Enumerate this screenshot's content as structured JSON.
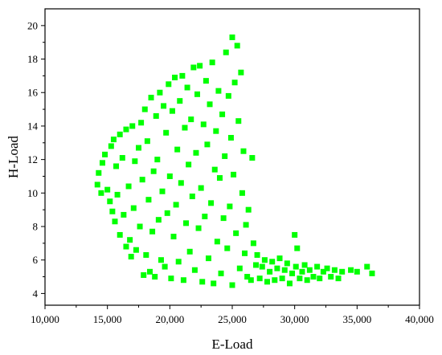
{
  "chart_data": {
    "type": "scatter",
    "title": "",
    "xlabel": "E-Load",
    "ylabel": "H-Load",
    "xlim": [
      10000,
      40000
    ],
    "ylim": [
      3.3,
      21
    ],
    "x_ticks": [
      10000,
      15000,
      20000,
      25000,
      30000,
      35000,
      40000
    ],
    "x_tick_labels": [
      "10,000",
      "15,000",
      "20,000",
      "25,000",
      "30,000",
      "35,000",
      "40,000"
    ],
    "y_ticks": [
      4,
      6,
      8,
      10,
      12,
      14,
      16,
      18,
      20
    ],
    "y_tick_labels": [
      "4",
      "6",
      "8",
      "10",
      "12",
      "14",
      "16",
      "18",
      "20"
    ],
    "grid": false,
    "legend": "none",
    "marker": "square",
    "series": [
      {
        "color": "#00ff00",
        "points": [
          [
            14200,
            10.5
          ],
          [
            14300,
            11.2
          ],
          [
            14500,
            10.0
          ],
          [
            14600,
            11.8
          ],
          [
            14800,
            12.3
          ],
          [
            15000,
            10.2
          ],
          [
            15200,
            9.5
          ],
          [
            15300,
            12.8
          ],
          [
            15400,
            8.9
          ],
          [
            15500,
            13.2
          ],
          [
            15600,
            8.3
          ],
          [
            15700,
            11.6
          ],
          [
            15800,
            9.9
          ],
          [
            16000,
            13.5
          ],
          [
            16000,
            7.5
          ],
          [
            16200,
            12.1
          ],
          [
            16300,
            8.7
          ],
          [
            16500,
            6.8
          ],
          [
            16500,
            13.8
          ],
          [
            16700,
            10.4
          ],
          [
            16800,
            7.2
          ],
          [
            16900,
            6.2
          ],
          [
            17000,
            14.0
          ],
          [
            17100,
            9.1
          ],
          [
            17200,
            11.9
          ],
          [
            17300,
            6.6
          ],
          [
            17500,
            12.7
          ],
          [
            17600,
            8.0
          ],
          [
            17700,
            14.2
          ],
          [
            17800,
            10.8
          ],
          [
            17900,
            5.1
          ],
          [
            18000,
            15.0
          ],
          [
            18100,
            6.3
          ],
          [
            18200,
            13.1
          ],
          [
            18300,
            9.6
          ],
          [
            18400,
            5.3
          ],
          [
            18500,
            15.7
          ],
          [
            18600,
            7.7
          ],
          [
            18700,
            11.3
          ],
          [
            18800,
            5.0
          ],
          [
            18900,
            14.6
          ],
          [
            19000,
            12.0
          ],
          [
            19100,
            8.4
          ],
          [
            19200,
            16.0
          ],
          [
            19300,
            6.0
          ],
          [
            19400,
            10.1
          ],
          [
            19500,
            15.2
          ],
          [
            19600,
            5.6
          ],
          [
            19700,
            13.6
          ],
          [
            19800,
            8.8
          ],
          [
            19900,
            16.5
          ],
          [
            20000,
            11.0
          ],
          [
            20100,
            4.9
          ],
          [
            20200,
            14.9
          ],
          [
            20300,
            7.4
          ],
          [
            20400,
            16.9
          ],
          [
            20500,
            9.3
          ],
          [
            20600,
            12.6
          ],
          [
            20700,
            5.9
          ],
          [
            20800,
            15.5
          ],
          [
            20900,
            10.6
          ],
          [
            21000,
            17.0
          ],
          [
            21100,
            4.8
          ],
          [
            21200,
            13.9
          ],
          [
            21300,
            8.2
          ],
          [
            21400,
            16.3
          ],
          [
            21500,
            11.7
          ],
          [
            21600,
            6.5
          ],
          [
            21700,
            14.4
          ],
          [
            21800,
            9.8
          ],
          [
            21900,
            17.5
          ],
          [
            22000,
            5.4
          ],
          [
            22100,
            12.4
          ],
          [
            22200,
            15.9
          ],
          [
            22300,
            7.9
          ],
          [
            22400,
            17.6
          ],
          [
            22500,
            10.3
          ],
          [
            22600,
            4.7
          ],
          [
            22700,
            14.1
          ],
          [
            22800,
            8.6
          ],
          [
            22900,
            16.7
          ],
          [
            23000,
            12.9
          ],
          [
            23100,
            6.1
          ],
          [
            23200,
            15.3
          ],
          [
            23300,
            9.4
          ],
          [
            23400,
            17.8
          ],
          [
            23500,
            4.6
          ],
          [
            23600,
            11.4
          ],
          [
            23700,
            13.7
          ],
          [
            23800,
            7.1
          ],
          [
            23900,
            16.1
          ],
          [
            24000,
            10.9
          ],
          [
            24100,
            5.2
          ],
          [
            24200,
            14.7
          ],
          [
            24300,
            8.5
          ],
          [
            24400,
            12.2
          ],
          [
            24500,
            18.4
          ],
          [
            24600,
            6.7
          ],
          [
            24700,
            15.8
          ],
          [
            24800,
            9.2
          ],
          [
            24900,
            13.3
          ],
          [
            25000,
            19.3
          ],
          [
            25000,
            4.5
          ],
          [
            25100,
            11.1
          ],
          [
            25200,
            16.6
          ],
          [
            25300,
            7.6
          ],
          [
            25400,
            18.8
          ],
          [
            25500,
            14.3
          ],
          [
            25600,
            5.5
          ],
          [
            25700,
            17.2
          ],
          [
            25800,
            10.0
          ],
          [
            25900,
            12.5
          ],
          [
            26000,
            6.4
          ],
          [
            26100,
            8.1
          ],
          [
            26200,
            5.0
          ],
          [
            26300,
            9.0
          ],
          [
            26500,
            4.8
          ],
          [
            26600,
            12.1
          ],
          [
            26700,
            7.0
          ],
          [
            26900,
            5.7
          ],
          [
            27000,
            6.3
          ],
          [
            27200,
            4.9
          ],
          [
            27400,
            5.6
          ],
          [
            27600,
            6.0
          ],
          [
            27800,
            4.7
          ],
          [
            28000,
            5.3
          ],
          [
            28200,
            5.9
          ],
          [
            28400,
            4.8
          ],
          [
            28600,
            5.5
          ],
          [
            28800,
            6.1
          ],
          [
            29000,
            4.9
          ],
          [
            29200,
            5.4
          ],
          [
            29400,
            5.8
          ],
          [
            29600,
            4.6
          ],
          [
            29800,
            5.2
          ],
          [
            30000,
            7.5
          ],
          [
            30100,
            5.6
          ],
          [
            30200,
            6.7
          ],
          [
            30400,
            4.9
          ],
          [
            30600,
            5.3
          ],
          [
            30800,
            5.7
          ],
          [
            31000,
            4.8
          ],
          [
            31200,
            5.4
          ],
          [
            31500,
            5.0
          ],
          [
            31800,
            5.6
          ],
          [
            32000,
            4.9
          ],
          [
            32300,
            5.3
          ],
          [
            32600,
            5.5
          ],
          [
            32900,
            5.0
          ],
          [
            33200,
            5.4
          ],
          [
            33500,
            4.9
          ],
          [
            33800,
            5.3
          ],
          [
            34500,
            5.4
          ],
          [
            35000,
            5.3
          ],
          [
            35800,
            5.6
          ],
          [
            36200,
            5.2
          ]
        ]
      }
    ]
  }
}
